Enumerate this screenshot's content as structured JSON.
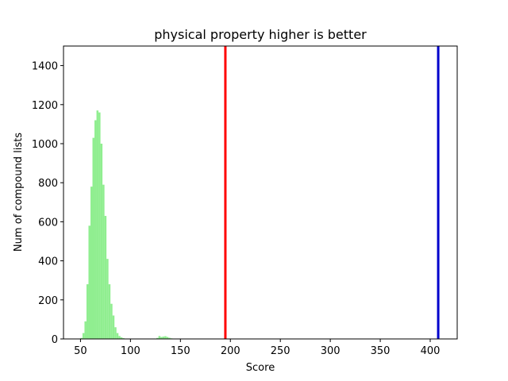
{
  "chart_data": {
    "type": "bar",
    "title": "physical property higher is better",
    "xlabel": "Score",
    "ylabel": "Num of compound lists",
    "xlim": [
      33,
      427
    ],
    "ylim": [
      0,
      1500
    ],
    "xticks": [
      50,
      100,
      150,
      200,
      250,
      300,
      350,
      400
    ],
    "yticks": [
      0,
      200,
      400,
      600,
      800,
      1000,
      1200,
      1400
    ],
    "grid": false,
    "histogram": {
      "color": "#90ee90",
      "bin_width": 2,
      "bins": [
        {
          "x": 50,
          "count": 5
        },
        {
          "x": 52,
          "count": 30
        },
        {
          "x": 54,
          "count": 90
        },
        {
          "x": 56,
          "count": 280
        },
        {
          "x": 58,
          "count": 580
        },
        {
          "x": 60,
          "count": 780
        },
        {
          "x": 62,
          "count": 1030
        },
        {
          "x": 64,
          "count": 1120
        },
        {
          "x": 66,
          "count": 1170
        },
        {
          "x": 68,
          "count": 1160
        },
        {
          "x": 70,
          "count": 1000
        },
        {
          "x": 72,
          "count": 790
        },
        {
          "x": 74,
          "count": 630
        },
        {
          "x": 76,
          "count": 410
        },
        {
          "x": 78,
          "count": 280
        },
        {
          "x": 80,
          "count": 180
        },
        {
          "x": 82,
          "count": 120
        },
        {
          "x": 84,
          "count": 60
        },
        {
          "x": 86,
          "count": 30
        },
        {
          "x": 88,
          "count": 15
        },
        {
          "x": 90,
          "count": 8
        },
        {
          "x": 92,
          "count": 4
        },
        {
          "x": 94,
          "count": 2
        },
        {
          "x": 96,
          "count": 1
        },
        {
          "x": 126,
          "count": 5
        },
        {
          "x": 128,
          "count": 15
        },
        {
          "x": 130,
          "count": 10
        },
        {
          "x": 132,
          "count": 12
        },
        {
          "x": 134,
          "count": 14
        },
        {
          "x": 136,
          "count": 10
        },
        {
          "x": 138,
          "count": 6
        },
        {
          "x": 140,
          "count": 3
        }
      ]
    },
    "vertical_lines": [
      {
        "x": 195,
        "color": "#ff0000"
      },
      {
        "x": 408,
        "color": "#0000cc"
      }
    ]
  }
}
